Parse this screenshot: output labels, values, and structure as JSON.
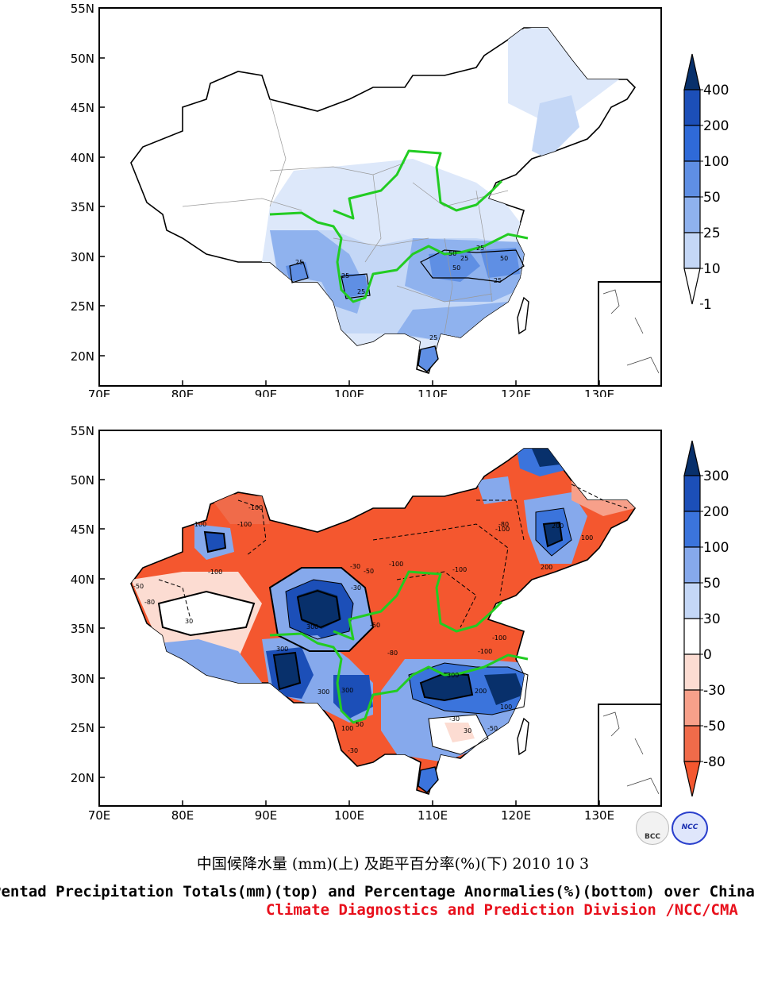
{
  "top_map": {
    "lat_labels": [
      "55N",
      "50N",
      "45N",
      "40N",
      "35N",
      "30N",
      "25N",
      "20N"
    ],
    "lon_labels": [
      "70E",
      "80E",
      "90E",
      "100E",
      "110E",
      "120E",
      "130E"
    ],
    "colorbar_labels": [
      "400",
      "200",
      "100",
      "50",
      "25",
      "10",
      "1"
    ],
    "colorbar_colors": [
      "#08306b",
      "#1c4fb8",
      "#2f6ad8",
      "#5f8fe4",
      "#8fb2ee",
      "#c4d7f6",
      "#ffffff"
    ],
    "contour_labels": [
      "25",
      "25",
      "25",
      "50",
      "25",
      "25",
      "50",
      "50",
      "25",
      "25"
    ]
  },
  "bottom_map": {
    "lat_labels": [
      "55N",
      "50N",
      "45N",
      "40N",
      "35N",
      "30N",
      "25N",
      "20N"
    ],
    "lon_labels": [
      "70E",
      "80E",
      "90E",
      "100E",
      "110E",
      "120E",
      "130E"
    ],
    "colorbar_labels": [
      "300",
      "200",
      "100",
      "50",
      "30",
      "0",
      "-30",
      "-50",
      "-80"
    ],
    "colorbar_colors": [
      "#08306b",
      "#1c4fb8",
      "#3b74dc",
      "#86a9ec",
      "#c4d7f6",
      "#ffffff",
      "#fcdcd2",
      "#f7a08a",
      "#f06b4a",
      "#f4572f"
    ],
    "contour_labels": [
      "-100",
      "-100",
      "-100",
      "-50",
      "-80",
      "-100",
      "-30",
      "-50",
      "300",
      "300",
      "-100",
      "-30",
      "-50",
      "200",
      "100",
      "-80",
      "-100",
      "-100",
      "-100",
      "300",
      "200",
      "100",
      "200",
      "300",
      "300",
      "50",
      "100",
      "-30",
      "-50",
      "-30",
      "30",
      "-100",
      "-80",
      "30"
    ]
  },
  "captions": {
    "chinese": "中国候降水量 (mm)(上) 及距平百分率(%)(下) 2010 10 3",
    "english": "Pentad Precipitation Totals(mm)(top) and Percentage Anormalies(%)(bottom) over China",
    "division": "Climate Diagnostics and Prediction Division /NCC/CMA"
  },
  "logos": {
    "bcc": "BCC",
    "ncc": "NCC"
  }
}
